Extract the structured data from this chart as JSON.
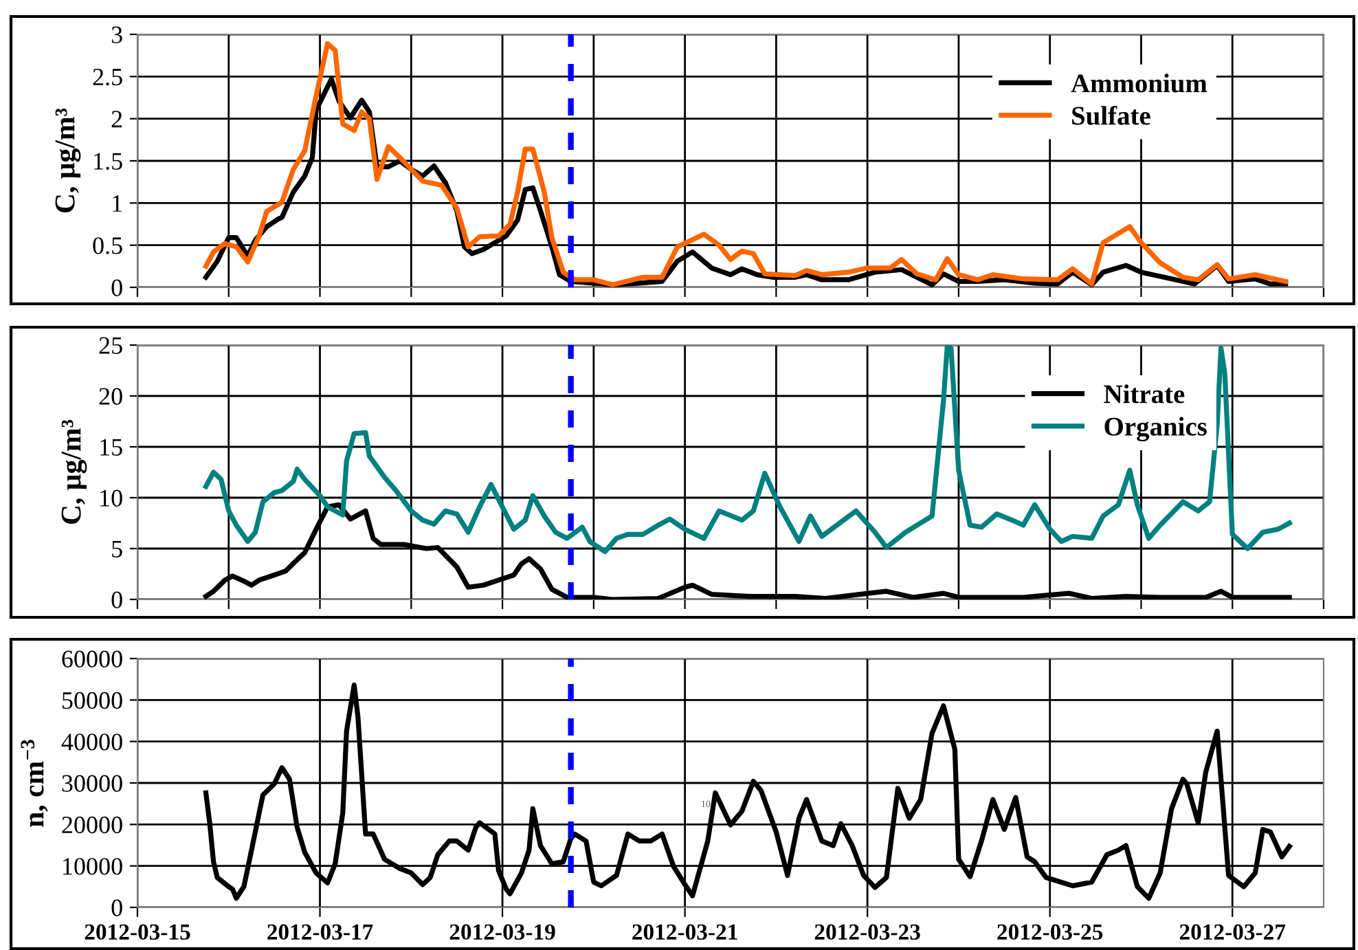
{
  "chart_data": [
    {
      "type": "line",
      "ylabel": "C, μg/m³",
      "xlim": [
        "2012-03-15",
        "2012-03-28"
      ],
      "xticks": [
        {
          "value": "2012-03-15",
          "label": null
        },
        {
          "value": "2012-03-16",
          "label": null
        },
        {
          "value": "2012-03-17",
          "label": null
        },
        {
          "value": "2012-03-18",
          "label": null
        },
        {
          "value": "2012-03-19",
          "label": null
        },
        {
          "value": "2012-03-20",
          "label": null
        },
        {
          "value": "2012-03-21",
          "label": null
        },
        {
          "value": "2012-03-22",
          "label": null
        },
        {
          "value": "2012-03-23",
          "label": null
        },
        {
          "value": "2012-03-24",
          "label": null
        },
        {
          "value": "2012-03-25",
          "label": null
        },
        {
          "value": "2012-03-26",
          "label": null
        },
        {
          "value": "2012-03-27",
          "label": null
        },
        {
          "value": "2012-03-28",
          "label": null
        }
      ],
      "ylim": [
        0,
        3
      ],
      "yticks": [
        0,
        0.5,
        1,
        1.5,
        2,
        2.5,
        3
      ],
      "grid": true,
      "legend": "top right",
      "tick_labels": "y",
      "ref_lines": [
        {
          "axis": "x",
          "value": "2012-03-19T18:00",
          "label": null,
          "color": "#0000ff",
          "line_style": "dashed"
        }
      ],
      "series": [
        {
          "name": "Ammonium",
          "color": "#000000",
          "x": [
            "2012-03-15T18:00",
            "2012-03-15T21:00",
            "2012-03-16T00:00",
            "2012-03-16T02:00",
            "2012-03-16T05:00",
            "2012-03-16T07:00",
            "2012-03-16T10:00",
            "2012-03-16T13:00",
            "2012-03-16T14:00",
            "2012-03-16T17:00",
            "2012-03-16T20:00",
            "2012-03-16T22:00",
            "2012-03-16T23:00",
            "2012-03-17T03:00",
            "2012-03-17T05:00",
            "2012-03-17T08:00",
            "2012-03-17T11:00",
            "2012-03-17T13:00",
            "2012-03-17T15:00",
            "2012-03-17T18:00",
            "2012-03-17T21:00",
            "2012-03-18T00:00",
            "2012-03-18T03:00",
            "2012-03-18T06:00",
            "2012-03-18T09:00",
            "2012-03-18T12:00",
            "2012-03-18T14:00",
            "2012-03-18T16:00",
            "2012-03-18T19:00",
            "2012-03-18T22:00",
            "2012-03-19T01:00",
            "2012-03-19T04:00",
            "2012-03-19T06:00",
            "2012-03-19T08:00",
            "2012-03-19T10:00",
            "2012-03-19T13:00",
            "2012-03-19T15:00",
            "2012-03-19T18:00",
            "2012-03-20T00:00",
            "2012-03-20T05:00",
            "2012-03-20T12:00",
            "2012-03-20T18:00",
            "2012-03-20T22:00",
            "2012-03-21T02:00",
            "2012-03-21T07:00",
            "2012-03-21T12:00",
            "2012-03-21T15:00",
            "2012-03-21T19:00",
            "2012-03-21T23:00",
            "2012-03-22T05:00",
            "2012-03-22T08:00",
            "2012-03-22T12:00",
            "2012-03-22T19:00",
            "2012-03-23T02:00",
            "2012-03-23T09:00",
            "2012-03-23T13:00",
            "2012-03-23T17:00",
            "2012-03-23T20:00",
            "2012-03-24T00:00",
            "2012-03-24T05:00",
            "2012-03-24T12:00",
            "2012-03-24T20:00",
            "2012-03-25T02:00",
            "2012-03-25T06:00",
            "2012-03-25T11:00",
            "2012-03-25T14:00",
            "2012-03-25T20:00",
            "2012-03-26T00:00",
            "2012-03-26T06:00",
            "2012-03-26T14:00",
            "2012-03-26T20:00",
            "2012-03-26T23:00",
            "2012-03-27T06:00",
            "2012-03-27T10:00",
            "2012-03-27T14:00"
          ],
          "values": [
            0.12,
            0.31,
            0.59,
            0.59,
            0.37,
            0.56,
            0.72,
            0.81,
            0.83,
            1.13,
            1.32,
            1.54,
            2.1,
            2.47,
            2.21,
            2.01,
            2.22,
            2.08,
            1.43,
            1.43,
            1.5,
            1.4,
            1.32,
            1.44,
            1.24,
            0.91,
            0.48,
            0.4,
            0.45,
            0.53,
            0.61,
            0.8,
            1.16,
            1.18,
            0.91,
            0.48,
            0.15,
            0.07,
            0.05,
            0.03,
            0.05,
            0.07,
            0.31,
            0.42,
            0.23,
            0.15,
            0.22,
            0.15,
            0.12,
            0.12,
            0.15,
            0.09,
            0.09,
            0.18,
            0.21,
            0.12,
            0.03,
            0.16,
            0.07,
            0.07,
            0.09,
            0.05,
            0.04,
            0.18,
            0.03,
            0.18,
            0.26,
            0.18,
            0.12,
            0.04,
            0.26,
            0.07,
            0.1,
            0.04,
            0.04
          ]
        },
        {
          "name": "Sulfate",
          "color": "#ff6600",
          "x": [
            "2012-03-15T18:00",
            "2012-03-15T20:00",
            "2012-03-15T23:00",
            "2012-03-16T02:00",
            "2012-03-16T05:00",
            "2012-03-16T08:00",
            "2012-03-16T10:00",
            "2012-03-16T14:00",
            "2012-03-16T17:00",
            "2012-03-16T20:00",
            "2012-03-16T23:00",
            "2012-03-17T02:00",
            "2012-03-17T04:00",
            "2012-03-17T06:00",
            "2012-03-17T09:00",
            "2012-03-17T11:00",
            "2012-03-17T13:00",
            "2012-03-17T15:00",
            "2012-03-17T18:00",
            "2012-03-17T21:00",
            "2012-03-18T03:00",
            "2012-03-18T08:00",
            "2012-03-18T12:00",
            "2012-03-18T15:00",
            "2012-03-18T18:00",
            "2012-03-18T23:00",
            "2012-03-19T02:00",
            "2012-03-19T04:00",
            "2012-03-19T06:00",
            "2012-03-19T08:00",
            "2012-03-19T11:00",
            "2012-03-19T13:00",
            "2012-03-19T16:00",
            "2012-03-19T19:00",
            "2012-03-20T00:00",
            "2012-03-20T05:00",
            "2012-03-20T13:00",
            "2012-03-20T18:00",
            "2012-03-20T22:00",
            "2012-03-21T05:00",
            "2012-03-21T09:00",
            "2012-03-21T12:00",
            "2012-03-21T15:00",
            "2012-03-21T18:00",
            "2012-03-21T21:00",
            "2012-03-22T05:00",
            "2012-03-22T08:00",
            "2012-03-22T12:00",
            "2012-03-22T19:00",
            "2012-03-23T00:00",
            "2012-03-23T06:00",
            "2012-03-23T09:00",
            "2012-03-23T13:00",
            "2012-03-23T18:00",
            "2012-03-23T21:00",
            "2012-03-24T00:00",
            "2012-03-24T05:00",
            "2012-03-24T09:00",
            "2012-03-24T17:00",
            "2012-03-25T02:00",
            "2012-03-25T06:00",
            "2012-03-25T11:00",
            "2012-03-25T14:00",
            "2012-03-25T21:00",
            "2012-03-26T00:00",
            "2012-03-26T05:00",
            "2012-03-26T11:00",
            "2012-03-26T15:00",
            "2012-03-26T20:00",
            "2012-03-26T23:00",
            "2012-03-27T06:00",
            "2012-03-27T14:00"
          ],
          "values": [
            0.25,
            0.42,
            0.52,
            0.48,
            0.3,
            0.61,
            0.9,
            1.01,
            1.4,
            1.62,
            2.27,
            2.89,
            2.81,
            1.94,
            1.86,
            2.08,
            2.0,
            1.28,
            1.67,
            1.54,
            1.26,
            1.21,
            0.94,
            0.48,
            0.6,
            0.61,
            0.75,
            1.13,
            1.64,
            1.64,
            1.13,
            0.59,
            0.18,
            0.09,
            0.09,
            0.03,
            0.12,
            0.12,
            0.48,
            0.63,
            0.5,
            0.33,
            0.43,
            0.4,
            0.16,
            0.14,
            0.2,
            0.15,
            0.18,
            0.23,
            0.23,
            0.33,
            0.16,
            0.09,
            0.34,
            0.15,
            0.09,
            0.15,
            0.1,
            0.09,
            0.22,
            0.04,
            0.53,
            0.72,
            0.53,
            0.29,
            0.12,
            0.09,
            0.27,
            0.1,
            0.15,
            0.07
          ]
        }
      ]
    },
    {
      "type": "line",
      "ylabel": "C, μg/m³",
      "xlim": [
        "2012-03-15",
        "2012-03-28"
      ],
      "xticks": [
        {
          "value": "2012-03-15",
          "label": null
        },
        {
          "value": "2012-03-16",
          "label": null
        },
        {
          "value": "2012-03-17",
          "label": null
        },
        {
          "value": "2012-03-18",
          "label": null
        },
        {
          "value": "2012-03-19",
          "label": null
        },
        {
          "value": "2012-03-20",
          "label": null
        },
        {
          "value": "2012-03-21",
          "label": null
        },
        {
          "value": "2012-03-22",
          "label": null
        },
        {
          "value": "2012-03-23",
          "label": null
        },
        {
          "value": "2012-03-24",
          "label": null
        },
        {
          "value": "2012-03-25",
          "label": null
        },
        {
          "value": "2012-03-26",
          "label": null
        },
        {
          "value": "2012-03-27",
          "label": null
        },
        {
          "value": "2012-03-28",
          "label": null
        }
      ],
      "ylim": [
        0,
        25
      ],
      "yticks": [
        0,
        5,
        10,
        15,
        20,
        25
      ],
      "grid": true,
      "legend": "top right",
      "tick_labels": "y",
      "ref_lines": [
        {
          "axis": "x",
          "value": "2012-03-19T18:00",
          "label": null,
          "color": "#0000ff",
          "line_style": "dashed"
        }
      ],
      "series": [
        {
          "name": "Nitrate",
          "color": "#000000",
          "x": [
            "2012-03-15T18:00",
            "2012-03-15T20:00",
            "2012-03-15T23:00",
            "2012-03-16T01:00",
            "2012-03-16T04:00",
            "2012-03-16T06:00",
            "2012-03-16T08:00",
            "2012-03-16T12:00",
            "2012-03-16T15:00",
            "2012-03-16T18:00",
            "2012-03-16T20:00",
            "2012-03-16T23:00",
            "2012-03-17T02:00",
            "2012-03-17T05:00",
            "2012-03-17T08:00",
            "2012-03-17T12:00",
            "2012-03-17T14:00",
            "2012-03-17T16:00",
            "2012-03-17T22:00",
            "2012-03-18T04:00",
            "2012-03-18T07:00",
            "2012-03-18T12:00",
            "2012-03-18T15:00",
            "2012-03-18T19:00",
            "2012-03-18T23:00",
            "2012-03-19T03:00",
            "2012-03-19T05:00",
            "2012-03-19T07:00",
            "2012-03-19T10:00",
            "2012-03-19T13:00",
            "2012-03-19T17:00",
            "2012-03-20T00:00",
            "2012-03-20T05:00",
            "2012-03-20T17:00",
            "2012-03-21T00:00",
            "2012-03-21T02:00",
            "2012-03-21T07:00",
            "2012-03-21T17:00",
            "2012-03-22T05:00",
            "2012-03-22T13:00",
            "2012-03-22T22:00",
            "2012-03-23T05:00",
            "2012-03-23T12:00",
            "2012-03-23T20:00",
            "2012-03-24T00:00",
            "2012-03-24T17:00",
            "2012-03-25T05:00",
            "2012-03-25T11:00",
            "2012-03-25T20:00",
            "2012-03-26T05:00",
            "2012-03-26T17:00",
            "2012-03-26T21:00",
            "2012-03-27T00:00",
            "2012-03-27T15:00"
          ],
          "values": [
            0.3,
            0.8,
            1.9,
            2.3,
            1.8,
            1.4,
            1.9,
            2.4,
            2.8,
            3.9,
            4.6,
            6.9,
            9.1,
            9.3,
            7.9,
            8.7,
            6.0,
            5.4,
            5.4,
            5.0,
            5.1,
            3.2,
            1.2,
            1.4,
            1.9,
            2.4,
            3.5,
            4.0,
            3.0,
            1.0,
            0.2,
            0.2,
            0.0,
            0.1,
            1.2,
            1.4,
            0.5,
            0.3,
            0.3,
            0.1,
            0.5,
            0.8,
            0.2,
            0.6,
            0.2,
            0.2,
            0.6,
            0.1,
            0.3,
            0.2,
            0.2,
            0.8,
            0.2,
            0.2
          ]
        },
        {
          "name": "Organics",
          "color": "#008080",
          "x": [
            "2012-03-15T18:00",
            "2012-03-15T20:00",
            "2012-03-15T22:00",
            "2012-03-16T00:00",
            "2012-03-16T02:00",
            "2012-03-16T05:00",
            "2012-03-16T07:00",
            "2012-03-16T09:00",
            "2012-03-16T12:00",
            "2012-03-16T14:00",
            "2012-03-16T17:00",
            "2012-03-16T18:00",
            "2012-03-16T20:00",
            "2012-03-17T00:00",
            "2012-03-17T02:00",
            "2012-03-17T06:00",
            "2012-03-17T07:00",
            "2012-03-17T09:00",
            "2012-03-17T12:00",
            "2012-03-17T13:00",
            "2012-03-17T17:00",
            "2012-03-17T20:00",
            "2012-03-18T00:00",
            "2012-03-18T03:00",
            "2012-03-18T06:00",
            "2012-03-18T09:00",
            "2012-03-18T12:00",
            "2012-03-18T15:00",
            "2012-03-18T18:00",
            "2012-03-18T21:00",
            "2012-03-18T23:00",
            "2012-03-19T03:00",
            "2012-03-19T06:00",
            "2012-03-19T08:00",
            "2012-03-19T11:00",
            "2012-03-19T14:00",
            "2012-03-19T17:00",
            "2012-03-19T21:00",
            "2012-03-19T23:00",
            "2012-03-20T03:00",
            "2012-03-20T06:00",
            "2012-03-20T09:00",
            "2012-03-20T13:00",
            "2012-03-20T17:00",
            "2012-03-20T20:00",
            "2012-03-21T00:00",
            "2012-03-21T05:00",
            "2012-03-21T09:00",
            "2012-03-21T15:00",
            "2012-03-21T18:00",
            "2012-03-21T21:00",
            "2012-03-22T01:00",
            "2012-03-22T06:00",
            "2012-03-22T09:00",
            "2012-03-22T12:00",
            "2012-03-22T21:00",
            "2012-03-23T02:00",
            "2012-03-23T05:00",
            "2012-03-23T10:00",
            "2012-03-23T17:00",
            "2012-03-23T20:00",
            "2012-03-23T21:00",
            "2012-03-23T22:00",
            "2012-03-24T00:00",
            "2012-03-24T03:00",
            "2012-03-24T06:00",
            "2012-03-24T10:00",
            "2012-03-24T14:00",
            "2012-03-24T17:00",
            "2012-03-24T20:00",
            "2012-03-25T00:00",
            "2012-03-25T03:00",
            "2012-03-25T06:00",
            "2012-03-25T11:00",
            "2012-03-25T14:00",
            "2012-03-25T18:00",
            "2012-03-25T21:00",
            "2012-03-25T23:00",
            "2012-03-26T02:00",
            "2012-03-26T05:00",
            "2012-03-26T11:00",
            "2012-03-26T15:00",
            "2012-03-26T18:00",
            "2012-03-26T20:00",
            "2012-03-26T21:00",
            "2012-03-26T22:00",
            "2012-03-27T00:00",
            "2012-03-27T04:00",
            "2012-03-27T08:00",
            "2012-03-27T12:00",
            "2012-03-27T15:00"
          ],
          "values": [
            11.1,
            12.5,
            11.8,
            8.7,
            7.3,
            5.7,
            6.6,
            9.6,
            10.5,
            10.7,
            11.6,
            12.8,
            11.8,
            10.2,
            9.1,
            8.3,
            13.6,
            16.3,
            16.4,
            14.1,
            12.0,
            10.7,
            8.7,
            7.8,
            7.4,
            8.7,
            8.4,
            6.6,
            9.1,
            11.3,
            9.8,
            6.9,
            7.8,
            10.2,
            8.2,
            6.6,
            6.0,
            7.1,
            5.7,
            4.7,
            6.0,
            6.4,
            6.4,
            7.3,
            7.9,
            6.9,
            6.0,
            8.7,
            7.8,
            8.7,
            12.4,
            9.1,
            5.7,
            8.2,
            6.2,
            8.7,
            6.6,
            5.1,
            6.6,
            8.2,
            19.5,
            24.9,
            24.7,
            12.7,
            7.3,
            7.1,
            8.4,
            7.8,
            7.3,
            9.3,
            6.9,
            5.7,
            6.2,
            6.0,
            8.2,
            9.3,
            12.7,
            9.3,
            6.0,
            7.3,
            9.6,
            8.7,
            9.6,
            17.2,
            24.7,
            22.2,
            6.4,
            5.0,
            6.6,
            6.9,
            7.5
          ]
        }
      ]
    },
    {
      "type": "line",
      "ylabel": "n, cm$^{−3}$",
      "xlim": [
        "2012-03-15",
        "2012-03-28"
      ],
      "xticks": [
        "2012-03-15",
        "2012-03-17",
        "2012-03-19",
        "2012-03-21",
        "2012-03-23",
        "2012-03-25",
        "2012-03-27"
      ],
      "ylim": [
        0,
        60000
      ],
      "yticks": [
        0,
        10000,
        20000,
        30000,
        40000,
        50000,
        60000
      ],
      "grid": true,
      "ref_lines": [
        {
          "axis": "x",
          "value": "2012-03-19T18:00",
          "label": null,
          "color": "#0000ff",
          "line_style": "dashed"
        }
      ],
      "annotations": [
        "10"
      ],
      "series": [
        {
          "color": "#000000",
          "x": [
            "2012-03-15T18:00",
            "2012-03-15T19:00",
            "2012-03-15T20:00",
            "2012-03-15T21:00",
            "2012-03-16T00:00",
            "2012-03-16T01:00",
            "2012-03-16T02:00",
            "2012-03-16T04:00",
            "2012-03-16T06:00",
            "2012-03-16T08:00",
            "2012-03-16T09:00",
            "2012-03-16T12:00",
            "2012-03-16T14:00",
            "2012-03-16T16:00",
            "2012-03-16T18:00",
            "2012-03-16T20:00",
            "2012-03-16T23:00",
            "2012-03-17T02:00",
            "2012-03-17T04:00",
            "2012-03-17T06:00",
            "2012-03-17T07:00",
            "2012-03-17T09:00",
            "2012-03-17T10:00",
            "2012-03-17T12:00",
            "2012-03-17T14:00",
            "2012-03-17T17:00",
            "2012-03-17T21:00",
            "2012-03-18T00:00",
            "2012-03-18T03:00",
            "2012-03-18T05:00",
            "2012-03-18T07:00",
            "2012-03-18T10:00",
            "2012-03-18T12:00",
            "2012-03-18T15:00",
            "2012-03-18T17:00",
            "2012-03-18T18:00",
            "2012-03-18T22:00",
            "2012-03-18T23:00",
            "2012-03-19T01:00",
            "2012-03-19T02:00",
            "2012-03-19T05:00",
            "2012-03-19T07:00",
            "2012-03-19T08:00",
            "2012-03-19T10:00",
            "2012-03-19T13:00",
            "2012-03-19T16:00",
            "2012-03-19T18:00",
            "2012-03-19T19:00",
            "2012-03-19T22:00",
            "2012-03-20T00:00",
            "2012-03-20T02:00",
            "2012-03-20T06:00",
            "2012-03-20T09:00",
            "2012-03-20T12:00",
            "2012-03-20T15:00",
            "2012-03-20T18:00",
            "2012-03-20T21:00",
            "2012-03-21T00:00",
            "2012-03-21T02:00",
            "2012-03-21T06:00",
            "2012-03-21T08:00",
            "2012-03-21T12:00",
            "2012-03-21T15:00",
            "2012-03-21T18:00",
            "2012-03-21T20:00",
            "2012-03-22T00:00",
            "2012-03-22T03:00",
            "2012-03-22T06:00",
            "2012-03-22T08:00",
            "2012-03-22T12:00",
            "2012-03-22T15:00",
            "2012-03-22T17:00",
            "2012-03-22T20:00",
            "2012-03-22T23:00",
            "2012-03-23T02:00",
            "2012-03-23T05:00",
            "2012-03-23T08:00",
            "2012-03-23T11:00",
            "2012-03-23T14:00",
            "2012-03-23T17:00",
            "2012-03-23T20:00",
            "2012-03-23T23:00",
            "2012-03-24T00:00",
            "2012-03-24T03:00",
            "2012-03-24T06:00",
            "2012-03-24T09:00",
            "2012-03-24T12:00",
            "2012-03-24T15:00",
            "2012-03-24T18:00",
            "2012-03-24T20:00",
            "2012-03-24T23:00",
            "2012-03-25T06:00",
            "2012-03-25T11:00",
            "2012-03-25T15:00",
            "2012-03-25T18:00",
            "2012-03-25T20:00",
            "2012-03-25T23:00",
            "2012-03-26T02:00",
            "2012-03-26T05:00",
            "2012-03-26T08:00",
            "2012-03-26T11:00",
            "2012-03-26T12:00",
            "2012-03-26T15:00",
            "2012-03-26T17:00",
            "2012-03-26T20:00",
            "2012-03-26T23:00",
            "2012-03-27T03:00",
            "2012-03-27T06:00",
            "2012-03-27T08:00",
            "2012-03-27T10:00",
            "2012-03-27T13:00",
            "2012-03-27T15:00"
          ],
          "values": [
            27600,
            20400,
            11000,
            7200,
            5000,
            4400,
            2200,
            5000,
            13800,
            22700,
            27100,
            29800,
            33700,
            30900,
            19300,
            13300,
            8300,
            5900,
            10500,
            22700,
            42500,
            53600,
            45900,
            17700,
            17700,
            11600,
            9400,
            8300,
            5500,
            7200,
            12700,
            16000,
            16000,
            13800,
            19300,
            20400,
            17700,
            8800,
            4400,
            3300,
            8300,
            13800,
            23800,
            14900,
            10500,
            11000,
            16600,
            17700,
            16000,
            6100,
            5200,
            7700,
            17700,
            16000,
            16000,
            17700,
            9900,
            5500,
            2800,
            16000,
            27600,
            19900,
            23200,
            30400,
            28200,
            18200,
            7700,
            21500,
            26000,
            16000,
            14900,
            20200,
            14900,
            7700,
            4800,
            7200,
            28700,
            21500,
            26000,
            42000,
            48600,
            38100,
            11600,
            7400,
            16000,
            26000,
            18800,
            26500,
            12200,
            11000,
            7200,
            5200,
            6100,
            12700,
            13800,
            14900,
            5000,
            2200,
            8300,
            23800,
            30900,
            29800,
            20400,
            32600,
            42500,
            7700,
            5000,
            8300,
            18800,
            18200,
            12200,
            14700
          ]
        }
      ]
    }
  ]
}
